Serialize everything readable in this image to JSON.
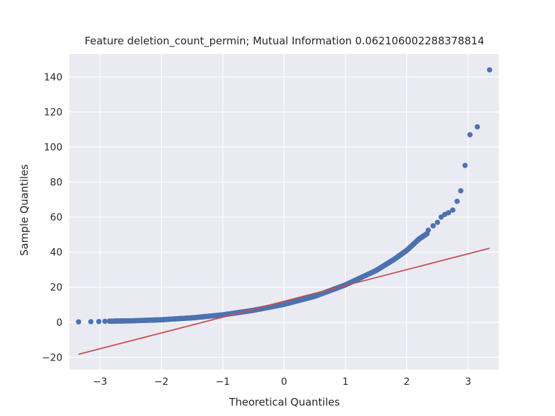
{
  "chart_data": {
    "type": "scatter",
    "title": "Feature deletion_count_permin; Mutual Information 0.062106002288378814",
    "xlabel": "Theoretical Quantiles",
    "ylabel": "Sample Quantiles",
    "xlim": [
      -3.5,
      3.5
    ],
    "ylim": [
      -27,
      153
    ],
    "xticks": [
      -3,
      -2,
      -1,
      0,
      1,
      2,
      3
    ],
    "xtick_labels": [
      "−3",
      "−2",
      "−1",
      "0",
      "1",
      "2",
      "3"
    ],
    "yticks": [
      -20,
      0,
      20,
      40,
      60,
      80,
      100,
      120,
      140
    ],
    "ytick_labels": [
      "−20",
      "0",
      "20",
      "40",
      "60",
      "80",
      "100",
      "120",
      "140"
    ],
    "grid": true,
    "colors": {
      "background": "#eaeaf2",
      "grid": "#ffffff",
      "points": "#4c72b0",
      "line": "#c44e52"
    },
    "reference_line": {
      "x": [
        -3.35,
        3.35
      ],
      "y": [
        -18.3,
        42.2
      ]
    },
    "outlier_points": [
      {
        "x": -3.35,
        "y": 0.2
      },
      {
        "x": -3.15,
        "y": 0.3
      },
      {
        "x": -3.02,
        "y": 0.4
      },
      {
        "x": -2.92,
        "y": 0.5
      },
      {
        "x": 2.35,
        "y": 52.5
      },
      {
        "x": 2.43,
        "y": 55.0
      },
      {
        "x": 2.5,
        "y": 57.0
      },
      {
        "x": 2.56,
        "y": 60.0
      },
      {
        "x": 2.62,
        "y": 61.5
      },
      {
        "x": 2.68,
        "y": 62.5
      },
      {
        "x": 2.75,
        "y": 64.0
      },
      {
        "x": 2.82,
        "y": 69.0
      },
      {
        "x": 2.88,
        "y": 75.0
      },
      {
        "x": 2.95,
        "y": 89.5
      },
      {
        "x": 3.03,
        "y": 107.0
      },
      {
        "x": 3.15,
        "y": 111.5
      },
      {
        "x": 3.35,
        "y": 144.0
      }
    ],
    "curve_points": [
      {
        "x": -2.85,
        "y": 0.6
      },
      {
        "x": -2.5,
        "y": 0.8
      },
      {
        "x": -2.0,
        "y": 1.4
      },
      {
        "x": -1.5,
        "y": 2.5
      },
      {
        "x": -1.0,
        "y": 4.2
      },
      {
        "x": -0.5,
        "y": 6.8
      },
      {
        "x": 0.0,
        "y": 10.2
      },
      {
        "x": 0.5,
        "y": 14.8
      },
      {
        "x": 1.0,
        "y": 21.3
      },
      {
        "x": 1.5,
        "y": 29.5
      },
      {
        "x": 1.8,
        "y": 36.0
      },
      {
        "x": 2.0,
        "y": 41.0
      },
      {
        "x": 2.2,
        "y": 47.5
      },
      {
        "x": 2.33,
        "y": 50.5
      }
    ]
  }
}
